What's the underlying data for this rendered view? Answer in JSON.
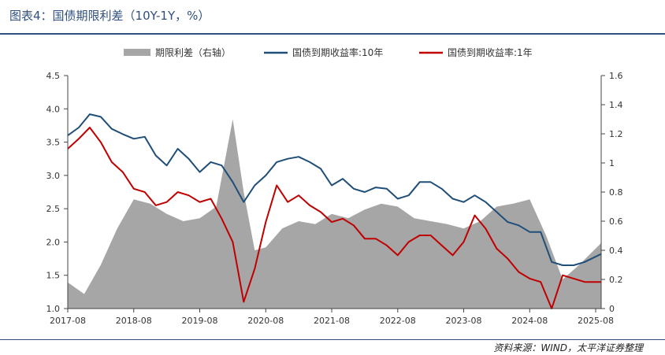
{
  "figure": {
    "title": "图表4：国债期限利差（10Y-1Y，%）",
    "source": "资料来源：WIND，太平洋证券整理"
  },
  "chart_data": {
    "type": "line",
    "title": "图表4：国债期限利差（10Y-1Y，%）",
    "legend_position": "top",
    "grid": false,
    "x_axis": {
      "ticks": [
        "2017-08",
        "2018-08",
        "2019-08",
        "2020-08",
        "2021-08",
        "2022-08",
        "2023-08",
        "2024-08",
        "2025-08"
      ],
      "range": [
        "2017-08",
        "2025-09"
      ]
    },
    "y_left": {
      "ticks": [
        "1.0",
        "1.5",
        "2.0",
        "2.5",
        "3.0",
        "3.5",
        "4.0",
        "4.5"
      ],
      "range": [
        1.0,
        4.5
      ]
    },
    "y_right": {
      "ticks": [
        "0",
        "0.2",
        "0.4",
        "0.6",
        "0.8",
        "1",
        "1.2",
        "1.4",
        "1.6"
      ],
      "range": [
        0,
        1.6
      ]
    },
    "series": [
      {
        "name": "期限利差（右轴）",
        "kind": "area",
        "axis": "right",
        "color": "#a6a6a6",
        "x": [
          "2017-08",
          "2017-11",
          "2018-02",
          "2018-05",
          "2018-08",
          "2018-11",
          "2019-02",
          "2019-05",
          "2019-08",
          "2019-11",
          "2020-02",
          "2020-04",
          "2020-06",
          "2020-08",
          "2020-11",
          "2021-02",
          "2021-05",
          "2021-08",
          "2021-11",
          "2022-02",
          "2022-05",
          "2022-08",
          "2022-11",
          "2023-02",
          "2023-05",
          "2023-08",
          "2023-11",
          "2024-02",
          "2024-05",
          "2024-08",
          "2024-11",
          "2025-02",
          "2025-05",
          "2025-09"
        ],
        "values": [
          0.18,
          0.1,
          0.3,
          0.55,
          0.75,
          0.72,
          0.65,
          0.6,
          0.62,
          0.7,
          1.3,
          0.8,
          0.4,
          0.42,
          0.55,
          0.6,
          0.58,
          0.65,
          0.62,
          0.68,
          0.72,
          0.7,
          0.62,
          0.6,
          0.58,
          0.55,
          0.6,
          0.7,
          0.72,
          0.75,
          0.5,
          0.2,
          0.3,
          0.45
        ]
      },
      {
        "name": "国债到期收益率:10年",
        "kind": "line",
        "axis": "left",
        "color": "#1f4e79",
        "x": [
          "2017-08",
          "2017-10",
          "2017-12",
          "2018-02",
          "2018-04",
          "2018-06",
          "2018-08",
          "2018-10",
          "2018-12",
          "2019-02",
          "2019-04",
          "2019-06",
          "2019-08",
          "2019-10",
          "2019-12",
          "2020-02",
          "2020-04",
          "2020-06",
          "2020-08",
          "2020-10",
          "2020-12",
          "2021-02",
          "2021-04",
          "2021-06",
          "2021-08",
          "2021-10",
          "2021-12",
          "2022-02",
          "2022-04",
          "2022-06",
          "2022-08",
          "2022-10",
          "2022-12",
          "2023-02",
          "2023-04",
          "2023-06",
          "2023-08",
          "2023-10",
          "2023-12",
          "2024-02",
          "2024-04",
          "2024-06",
          "2024-08",
          "2024-10",
          "2024-12",
          "2025-02",
          "2025-04",
          "2025-06",
          "2025-09"
        ],
        "values": [
          3.6,
          3.72,
          3.92,
          3.88,
          3.7,
          3.62,
          3.55,
          3.58,
          3.3,
          3.15,
          3.4,
          3.25,
          3.05,
          3.2,
          3.15,
          2.9,
          2.6,
          2.85,
          3.0,
          3.2,
          3.25,
          3.28,
          3.2,
          3.1,
          2.85,
          2.95,
          2.8,
          2.75,
          2.82,
          2.8,
          2.65,
          2.7,
          2.9,
          2.9,
          2.8,
          2.65,
          2.6,
          2.7,
          2.6,
          2.45,
          2.3,
          2.25,
          2.15,
          2.15,
          1.7,
          1.65,
          1.65,
          1.7,
          1.82
        ]
      },
      {
        "name": "国债到期收益率:1年",
        "kind": "line",
        "axis": "left",
        "color": "#c00000",
        "x": [
          "2017-08",
          "2017-10",
          "2017-12",
          "2018-02",
          "2018-04",
          "2018-06",
          "2018-08",
          "2018-10",
          "2018-12",
          "2019-02",
          "2019-04",
          "2019-06",
          "2019-08",
          "2019-10",
          "2019-12",
          "2020-02",
          "2020-04",
          "2020-06",
          "2020-08",
          "2020-10",
          "2020-12",
          "2021-02",
          "2021-04",
          "2021-06",
          "2021-08",
          "2021-10",
          "2021-12",
          "2022-02",
          "2022-04",
          "2022-06",
          "2022-08",
          "2022-10",
          "2022-12",
          "2023-02",
          "2023-04",
          "2023-06",
          "2023-08",
          "2023-10",
          "2023-12",
          "2024-02",
          "2024-04",
          "2024-06",
          "2024-08",
          "2024-10",
          "2024-12",
          "2025-02",
          "2025-04",
          "2025-06",
          "2025-09"
        ],
        "values": [
          3.4,
          3.55,
          3.72,
          3.5,
          3.2,
          3.05,
          2.8,
          2.75,
          2.55,
          2.6,
          2.75,
          2.7,
          2.6,
          2.65,
          2.35,
          2.0,
          1.1,
          1.6,
          2.3,
          2.85,
          2.6,
          2.7,
          2.55,
          2.45,
          2.3,
          2.35,
          2.25,
          2.05,
          2.05,
          1.95,
          1.8,
          2.0,
          2.1,
          2.1,
          1.95,
          1.8,
          2.0,
          2.4,
          2.2,
          1.9,
          1.75,
          1.55,
          1.45,
          1.4,
          1.0,
          1.5,
          1.45,
          1.4,
          1.4
        ]
      }
    ]
  }
}
